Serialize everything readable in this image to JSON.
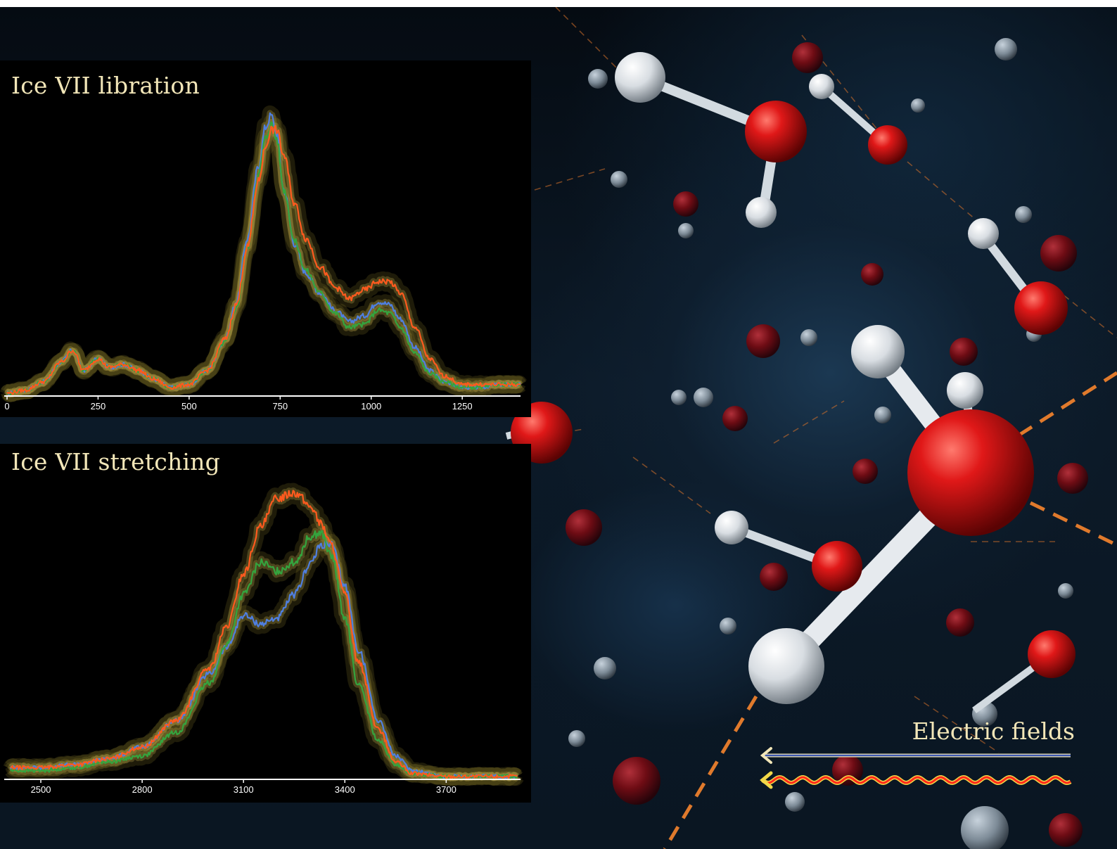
{
  "legend": {
    "title": "Electric fields"
  },
  "colors": {
    "series_blue": "#4f7fe0",
    "series_green": "#34a43e",
    "series_red": "#ff5a1e",
    "title_text": "#f2e6b8",
    "glow": "#8a7a2a"
  },
  "chart_data": [
    {
      "type": "line",
      "title": "Ice VII libration",
      "xlabel": "",
      "ylabel": "",
      "xlim": [
        0,
        1410
      ],
      "ylim": [
        0,
        1.0
      ],
      "xticks": [
        0,
        250,
        500,
        750,
        1000,
        1250
      ],
      "grid": false,
      "x": [
        0,
        50,
        100,
        150,
        180,
        210,
        250,
        280,
        320,
        360,
        400,
        450,
        500,
        550,
        600,
        630,
        660,
        690,
        710,
        725,
        740,
        760,
        790,
        820,
        860,
        900,
        940,
        980,
        1020,
        1050,
        1080,
        1120,
        1160,
        1200,
        1250,
        1300,
        1350,
        1410
      ],
      "series": [
        {
          "values": [
            0.01,
            0.02,
            0.05,
            0.12,
            0.16,
            0.09,
            0.13,
            0.1,
            0.11,
            0.09,
            0.06,
            0.03,
            0.04,
            0.09,
            0.2,
            0.33,
            0.55,
            0.8,
            0.94,
            0.98,
            0.92,
            0.72,
            0.53,
            0.43,
            0.36,
            0.3,
            0.26,
            0.28,
            0.33,
            0.32,
            0.27,
            0.17,
            0.09,
            0.05,
            0.03,
            0.03,
            0.04,
            0.04
          ]
        },
        {
          "values": [
            0.01,
            0.02,
            0.05,
            0.12,
            0.16,
            0.09,
            0.13,
            0.1,
            0.11,
            0.09,
            0.06,
            0.03,
            0.04,
            0.09,
            0.19,
            0.31,
            0.52,
            0.77,
            0.9,
            0.95,
            0.9,
            0.72,
            0.54,
            0.44,
            0.36,
            0.29,
            0.24,
            0.25,
            0.3,
            0.29,
            0.24,
            0.15,
            0.08,
            0.05,
            0.03,
            0.03,
            0.04,
            0.04
          ]
        },
        {
          "values": [
            0.01,
            0.02,
            0.05,
            0.12,
            0.16,
            0.09,
            0.13,
            0.1,
            0.11,
            0.09,
            0.06,
            0.03,
            0.04,
            0.09,
            0.2,
            0.32,
            0.52,
            0.75,
            0.87,
            0.93,
            0.93,
            0.84,
            0.67,
            0.55,
            0.45,
            0.38,
            0.34,
            0.37,
            0.4,
            0.4,
            0.36,
            0.24,
            0.13,
            0.07,
            0.04,
            0.04,
            0.04,
            0.04
          ]
        }
      ]
    },
    {
      "type": "line",
      "title": "Ice VII stretching",
      "xlabel": "",
      "ylabel": "",
      "xlim": [
        2400,
        3920
      ],
      "ylim": [
        0,
        1.0
      ],
      "xticks": [
        2500,
        2800,
        3100,
        3400,
        3700
      ],
      "grid": false,
      "x": [
        2410,
        2500,
        2600,
        2700,
        2800,
        2900,
        3000,
        3050,
        3100,
        3150,
        3200,
        3250,
        3300,
        3330,
        3360,
        3400,
        3440,
        3500,
        3550,
        3600,
        3700,
        3800,
        3910
      ],
      "series": [
        {
          "values": [
            0.04,
            0.04,
            0.05,
            0.07,
            0.11,
            0.2,
            0.36,
            0.45,
            0.56,
            0.53,
            0.55,
            0.63,
            0.74,
            0.8,
            0.8,
            0.66,
            0.44,
            0.2,
            0.08,
            0.03,
            0.01,
            0.01,
            0.01
          ]
        },
        {
          "values": [
            0.03,
            0.03,
            0.04,
            0.06,
            0.08,
            0.16,
            0.33,
            0.46,
            0.63,
            0.74,
            0.71,
            0.74,
            0.83,
            0.84,
            0.76,
            0.55,
            0.32,
            0.13,
            0.05,
            0.02,
            0.01,
            0.01,
            0.01
          ]
        },
        {
          "values": [
            0.04,
            0.04,
            0.05,
            0.07,
            0.11,
            0.2,
            0.38,
            0.52,
            0.7,
            0.86,
            0.96,
            0.98,
            0.93,
            0.87,
            0.8,
            0.63,
            0.4,
            0.17,
            0.06,
            0.02,
            0.01,
            0.01,
            0.01
          ]
        }
      ]
    }
  ]
}
